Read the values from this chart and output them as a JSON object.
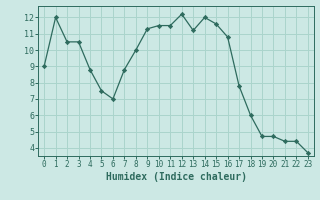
{
  "x": [
    0,
    1,
    2,
    3,
    4,
    5,
    6,
    7,
    8,
    9,
    10,
    11,
    12,
    13,
    14,
    15,
    16,
    17,
    18,
    19,
    20,
    21,
    22,
    23
  ],
  "y": [
    9.0,
    12.0,
    10.5,
    10.5,
    8.8,
    7.5,
    7.0,
    8.8,
    10.0,
    11.3,
    11.5,
    11.5,
    12.2,
    11.2,
    12.0,
    11.6,
    10.8,
    7.8,
    6.0,
    4.7,
    4.7,
    4.4,
    4.4,
    3.7
  ],
  "xlabel": "Humidex (Indice chaleur)",
  "bg_color": "#cce8e4",
  "grid_color": "#aad4cc",
  "line_color": "#2e6b5e",
  "marker_color": "#2e6b5e",
  "xlabel_color": "#2e6b5e",
  "tick_color": "#2e6b5e",
  "xlim": [
    -0.5,
    23.5
  ],
  "ylim": [
    3.5,
    12.7
  ],
  "yticks": [
    4,
    5,
    6,
    7,
    8,
    9,
    10,
    11,
    12
  ],
  "xticks": [
    0,
    1,
    2,
    3,
    4,
    5,
    6,
    7,
    8,
    9,
    10,
    11,
    12,
    13,
    14,
    15,
    16,
    17,
    18,
    19,
    20,
    21,
    22,
    23
  ]
}
